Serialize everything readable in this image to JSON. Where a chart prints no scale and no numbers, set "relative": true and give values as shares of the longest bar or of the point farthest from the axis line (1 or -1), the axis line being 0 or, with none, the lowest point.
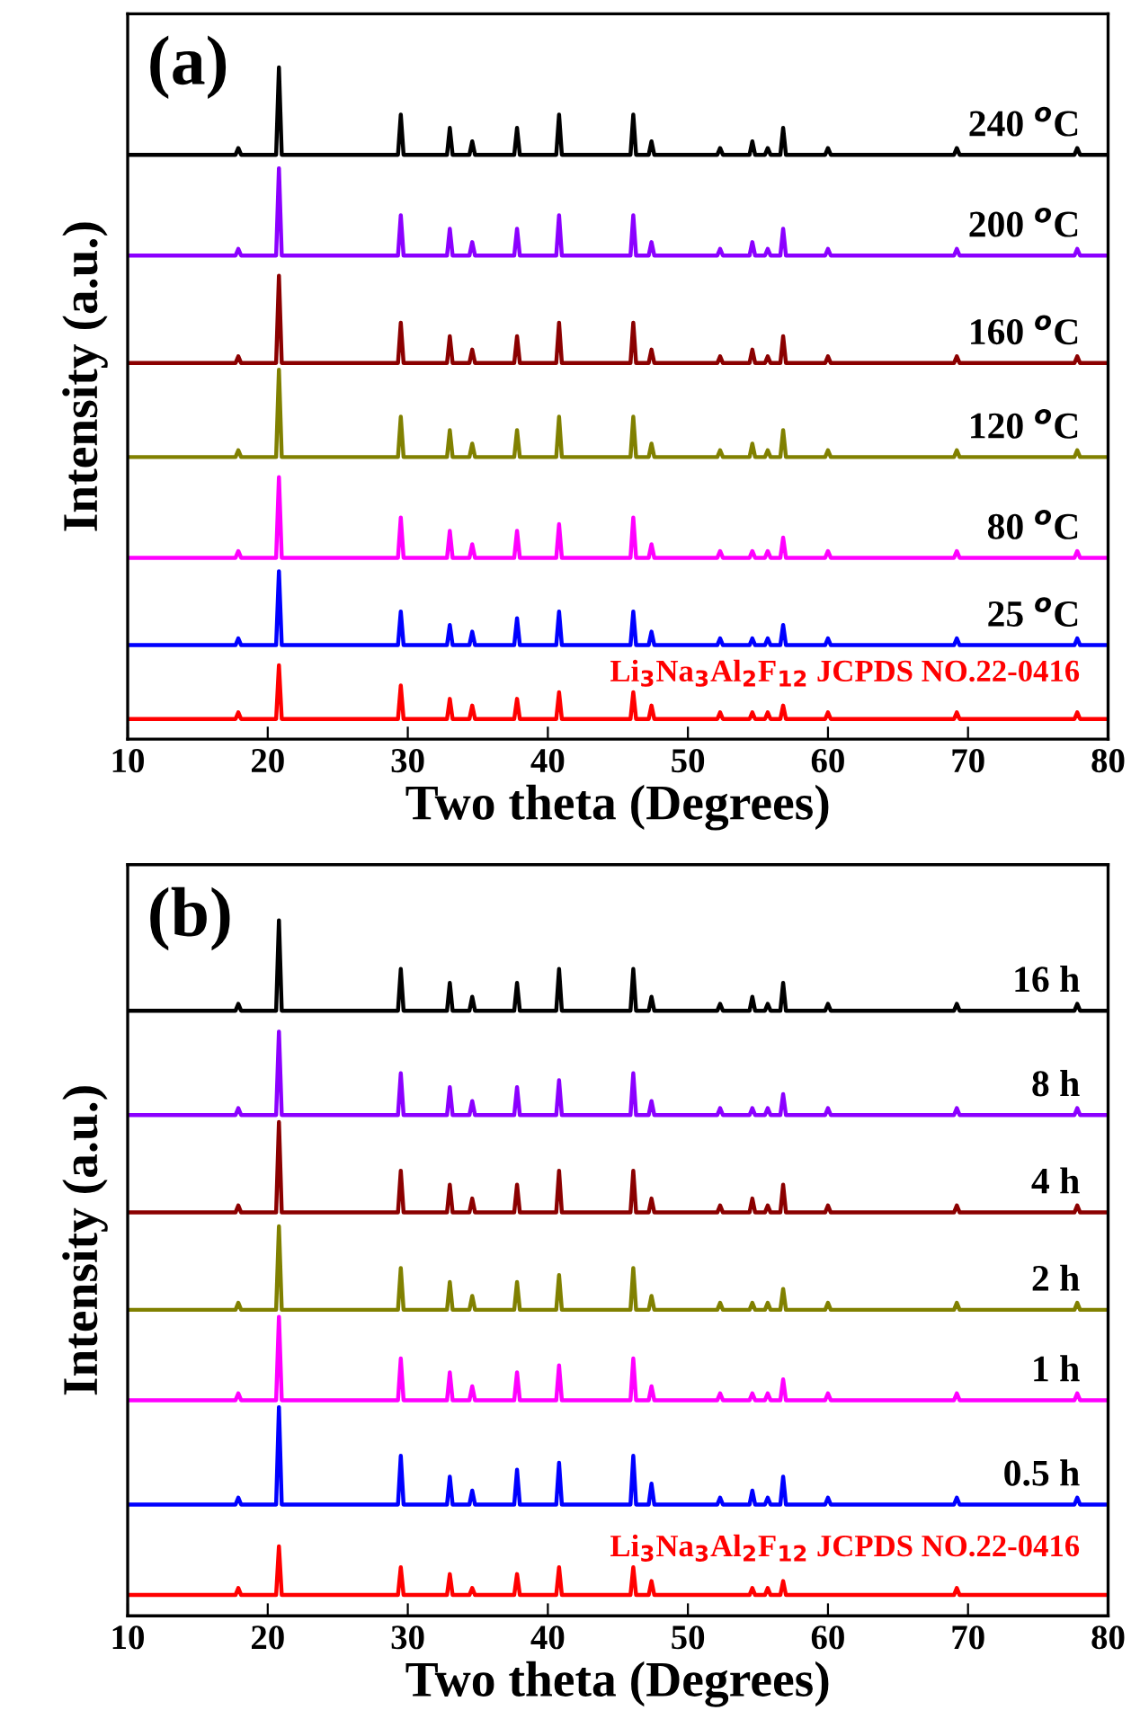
{
  "chart_data": [
    {
      "type": "line",
      "relative": true,
      "title": "(a)",
      "xlabel": "Two theta (Degrees)",
      "ylabel": "Intensity (a.u.)",
      "xlim": [
        10,
        80
      ],
      "xticks": [
        10,
        20,
        30,
        40,
        50,
        60,
        70,
        80
      ],
      "tick_labels": "x",
      "grid": false,
      "legend": false,
      "x": [
        10,
        17.7,
        17.9,
        18.1,
        20.6,
        20.8,
        21.0,
        29.3,
        29.5,
        29.7,
        32.8,
        33.0,
        33.2,
        34.4,
        34.6,
        34.8,
        37.6,
        37.8,
        38.0,
        40.6,
        40.8,
        41.0,
        45.9,
        46.1,
        46.3,
        47.2,
        47.4,
        47.6,
        52.1,
        52.3,
        52.5,
        54.4,
        54.6,
        54.8,
        55.5,
        55.7,
        55.9,
        56.6,
        56.8,
        57.0,
        59.8,
        60.0,
        60.2,
        69.0,
        69.2,
        69.4,
        77.6,
        77.8,
        78.0,
        80
      ],
      "series": [
        {
          "name": "240 $^{o}$C",
          "color": "#000000",
          "values": [
            0.87,
            0.87,
            0.88,
            0.87,
            0.87,
            1.0,
            0.87,
            0.87,
            0.93,
            0.87,
            0.87,
            0.91,
            0.87,
            0.87,
            0.89,
            0.87,
            0.87,
            0.91,
            0.87,
            0.87,
            0.93,
            0.87,
            0.87,
            0.93,
            0.87,
            0.87,
            0.89,
            0.87,
            0.87,
            0.88,
            0.87,
            0.87,
            0.89,
            0.87,
            0.87,
            0.88,
            0.87,
            0.87,
            0.91,
            0.87,
            0.87,
            0.88,
            0.87,
            0.87,
            0.88,
            0.87,
            0.87,
            0.88,
            0.87,
            0.87
          ]
        },
        {
          "name": "200 $^{o}$C",
          "color": "#8b00ff",
          "values": [
            0.72,
            0.72,
            0.73,
            0.72,
            0.72,
            0.85,
            0.72,
            0.72,
            0.78,
            0.72,
            0.72,
            0.76,
            0.72,
            0.72,
            0.74,
            0.72,
            0.72,
            0.76,
            0.72,
            0.72,
            0.78,
            0.72,
            0.72,
            0.78,
            0.72,
            0.72,
            0.74,
            0.72,
            0.72,
            0.73,
            0.72,
            0.72,
            0.74,
            0.72,
            0.72,
            0.73,
            0.72,
            0.72,
            0.76,
            0.72,
            0.72,
            0.73,
            0.72,
            0.72,
            0.73,
            0.72,
            0.72,
            0.73,
            0.72,
            0.72
          ]
        },
        {
          "name": "160 $^{o}$C",
          "color": "#8b0000",
          "values": [
            0.56,
            0.56,
            0.57,
            0.56,
            0.56,
            0.69,
            0.56,
            0.56,
            0.62,
            0.56,
            0.56,
            0.6,
            0.56,
            0.56,
            0.58,
            0.56,
            0.56,
            0.6,
            0.56,
            0.56,
            0.62,
            0.56,
            0.56,
            0.62,
            0.56,
            0.56,
            0.58,
            0.56,
            0.56,
            0.57,
            0.56,
            0.56,
            0.58,
            0.56,
            0.56,
            0.57,
            0.56,
            0.56,
            0.6,
            0.56,
            0.56,
            0.57,
            0.56,
            0.56,
            0.57,
            0.56,
            0.56,
            0.57,
            0.56,
            0.56
          ]
        },
        {
          "name": "120 $^{o}$C",
          "color": "#808000",
          "values": [
            0.42,
            0.42,
            0.43,
            0.42,
            0.42,
            0.55,
            0.42,
            0.42,
            0.48,
            0.42,
            0.42,
            0.46,
            0.42,
            0.42,
            0.44,
            0.42,
            0.42,
            0.46,
            0.42,
            0.42,
            0.48,
            0.42,
            0.42,
            0.48,
            0.42,
            0.42,
            0.44,
            0.42,
            0.42,
            0.43,
            0.42,
            0.42,
            0.44,
            0.42,
            0.42,
            0.43,
            0.42,
            0.42,
            0.46,
            0.42,
            0.42,
            0.43,
            0.42,
            0.42,
            0.43,
            0.42,
            0.42,
            0.43,
            0.42,
            0.42
          ]
        },
        {
          "name": "80 $^{o}$C",
          "color": "#ff00ff",
          "values": [
            0.27,
            0.27,
            0.28,
            0.27,
            0.27,
            0.39,
            0.27,
            0.27,
            0.33,
            0.27,
            0.27,
            0.31,
            0.27,
            0.27,
            0.29,
            0.27,
            0.27,
            0.31,
            0.27,
            0.27,
            0.32,
            0.27,
            0.27,
            0.33,
            0.27,
            0.27,
            0.29,
            0.27,
            0.27,
            0.28,
            0.27,
            0.27,
            0.28,
            0.27,
            0.27,
            0.28,
            0.27,
            0.27,
            0.3,
            0.27,
            0.27,
            0.28,
            0.27,
            0.27,
            0.28,
            0.27,
            0.27,
            0.28,
            0.27,
            0.27
          ]
        },
        {
          "name": "25 $^{o}$C",
          "color": "#0000ff",
          "values": [
            0.14,
            0.14,
            0.15,
            0.14,
            0.14,
            0.25,
            0.14,
            0.14,
            0.19,
            0.14,
            0.14,
            0.17,
            0.14,
            0.14,
            0.16,
            0.14,
            0.14,
            0.18,
            0.14,
            0.14,
            0.19,
            0.14,
            0.14,
            0.19,
            0.14,
            0.14,
            0.16,
            0.14,
            0.14,
            0.15,
            0.14,
            0.14,
            0.15,
            0.14,
            0.14,
            0.15,
            0.14,
            0.14,
            0.17,
            0.14,
            0.14,
            0.15,
            0.14,
            0.14,
            0.15,
            0.14,
            0.14,
            0.15,
            0.14,
            0.14
          ]
        },
        {
          "name": "Li$_{3}$Na$_{3}$Al$_{2}$F$_{12}$ JCPDS NO.22-0416",
          "color": "#ff0000",
          "values": [
            0.03,
            0.03,
            0.04,
            0.03,
            0.03,
            0.11,
            0.03,
            0.03,
            0.08,
            0.03,
            0.03,
            0.06,
            0.03,
            0.03,
            0.05,
            0.03,
            0.03,
            0.06,
            0.03,
            0.03,
            0.07,
            0.03,
            0.03,
            0.07,
            0.03,
            0.03,
            0.05,
            0.03,
            0.03,
            0.04,
            0.03,
            0.03,
            0.04,
            0.03,
            0.03,
            0.04,
            0.03,
            0.03,
            0.05,
            0.03,
            0.03,
            0.04,
            0.03,
            0.03,
            0.04,
            0.03,
            0.03,
            0.04,
            0.03,
            0.03
          ]
        }
      ]
    },
    {
      "type": "line",
      "relative": true,
      "title": "(b)",
      "xlabel": "Two theta (Degrees)",
      "ylabel": "Intensity (a.u.)",
      "xlim": [
        10,
        80
      ],
      "xticks": [
        10,
        20,
        30,
        40,
        50,
        60,
        70,
        80
      ],
      "tick_labels": "x",
      "grid": false,
      "legend": false,
      "x": [
        10,
        17.7,
        17.9,
        18.1,
        20.6,
        20.8,
        21.0,
        29.3,
        29.5,
        29.7,
        32.8,
        33.0,
        33.2,
        34.4,
        34.6,
        34.8,
        37.6,
        37.8,
        38.0,
        40.6,
        40.8,
        41.0,
        45.9,
        46.1,
        46.3,
        47.2,
        47.4,
        47.6,
        52.1,
        52.3,
        52.5,
        54.4,
        54.6,
        54.8,
        55.5,
        55.7,
        55.9,
        56.6,
        56.8,
        57.0,
        59.8,
        60.0,
        60.2,
        69.0,
        69.2,
        69.4,
        77.6,
        77.8,
        78.0,
        80
      ],
      "series": [
        {
          "name": "16 h",
          "color": "#000000",
          "values": [
            0.87,
            0.87,
            0.88,
            0.87,
            0.87,
            1.0,
            0.87,
            0.87,
            0.93,
            0.87,
            0.87,
            0.91,
            0.87,
            0.87,
            0.89,
            0.87,
            0.87,
            0.91,
            0.87,
            0.87,
            0.93,
            0.87,
            0.87,
            0.93,
            0.87,
            0.87,
            0.89,
            0.87,
            0.87,
            0.88,
            0.87,
            0.87,
            0.89,
            0.87,
            0.87,
            0.88,
            0.87,
            0.87,
            0.91,
            0.87,
            0.87,
            0.88,
            0.87,
            0.87,
            0.88,
            0.87,
            0.87,
            0.88,
            0.87,
            0.87
          ]
        },
        {
          "name": "8 h",
          "color": "#8b00ff",
          "values": [
            0.72,
            0.72,
            0.73,
            0.72,
            0.72,
            0.84,
            0.72,
            0.72,
            0.78,
            0.72,
            0.72,
            0.76,
            0.72,
            0.72,
            0.74,
            0.72,
            0.72,
            0.76,
            0.72,
            0.72,
            0.77,
            0.72,
            0.72,
            0.78,
            0.72,
            0.72,
            0.74,
            0.72,
            0.72,
            0.73,
            0.72,
            0.72,
            0.73,
            0.72,
            0.72,
            0.73,
            0.72,
            0.72,
            0.75,
            0.72,
            0.72,
            0.73,
            0.72,
            0.72,
            0.73,
            0.72,
            0.72,
            0.73,
            0.72,
            0.72
          ]
        },
        {
          "name": "4 h",
          "color": "#8b0000",
          "values": [
            0.58,
            0.58,
            0.59,
            0.58,
            0.58,
            0.71,
            0.58,
            0.58,
            0.64,
            0.58,
            0.58,
            0.62,
            0.58,
            0.58,
            0.6,
            0.58,
            0.58,
            0.62,
            0.58,
            0.58,
            0.64,
            0.58,
            0.58,
            0.64,
            0.58,
            0.58,
            0.6,
            0.58,
            0.58,
            0.59,
            0.58,
            0.58,
            0.6,
            0.58,
            0.58,
            0.59,
            0.58,
            0.58,
            0.62,
            0.58,
            0.58,
            0.59,
            0.58,
            0.58,
            0.59,
            0.58,
            0.58,
            0.59,
            0.58,
            0.58
          ]
        },
        {
          "name": "2 h",
          "color": "#808000",
          "values": [
            0.44,
            0.44,
            0.45,
            0.44,
            0.44,
            0.56,
            0.44,
            0.44,
            0.5,
            0.44,
            0.44,
            0.48,
            0.44,
            0.44,
            0.46,
            0.44,
            0.44,
            0.48,
            0.44,
            0.44,
            0.49,
            0.44,
            0.44,
            0.5,
            0.44,
            0.44,
            0.46,
            0.44,
            0.44,
            0.45,
            0.44,
            0.44,
            0.45,
            0.44,
            0.44,
            0.45,
            0.44,
            0.44,
            0.47,
            0.44,
            0.44,
            0.45,
            0.44,
            0.44,
            0.45,
            0.44,
            0.44,
            0.45,
            0.44,
            0.44
          ]
        },
        {
          "name": "1 h",
          "color": "#ff00ff",
          "values": [
            0.31,
            0.31,
            0.32,
            0.31,
            0.31,
            0.43,
            0.31,
            0.31,
            0.37,
            0.31,
            0.31,
            0.35,
            0.31,
            0.31,
            0.33,
            0.31,
            0.31,
            0.35,
            0.31,
            0.31,
            0.36,
            0.31,
            0.31,
            0.37,
            0.31,
            0.31,
            0.33,
            0.31,
            0.31,
            0.32,
            0.31,
            0.31,
            0.32,
            0.31,
            0.31,
            0.32,
            0.31,
            0.31,
            0.34,
            0.31,
            0.31,
            0.32,
            0.31,
            0.31,
            0.32,
            0.31,
            0.31,
            0.32,
            0.31,
            0.31
          ]
        },
        {
          "name": "0.5 h",
          "color": "#0000ff",
          "values": [
            0.16,
            0.16,
            0.17,
            0.16,
            0.16,
            0.3,
            0.16,
            0.16,
            0.23,
            0.16,
            0.16,
            0.2,
            0.16,
            0.16,
            0.18,
            0.16,
            0.16,
            0.21,
            0.16,
            0.16,
            0.22,
            0.16,
            0.16,
            0.23,
            0.16,
            0.16,
            0.19,
            0.16,
            0.16,
            0.17,
            0.16,
            0.16,
            0.18,
            0.16,
            0.16,
            0.17,
            0.16,
            0.16,
            0.2,
            0.16,
            0.16,
            0.17,
            0.16,
            0.16,
            0.17,
            0.16,
            0.16,
            0.17,
            0.16,
            0.16
          ]
        },
        {
          "name": "Li$_{3}$Na$_{3}$Al$_{2}$F$_{12}$ JCPDS NO.22-0416",
          "color": "#ff0000",
          "values": [
            0.03,
            0.03,
            0.04,
            0.03,
            0.03,
            0.1,
            0.03,
            0.03,
            0.07,
            0.03,
            0.03,
            0.06,
            0.03,
            0.03,
            0.04,
            0.03,
            0.03,
            0.06,
            0.03,
            0.03,
            0.07,
            0.03,
            0.03,
            0.07,
            0.03,
            0.03,
            0.05,
            0.03,
            0.03,
            0.03,
            0.03,
            0.03,
            0.04,
            0.03,
            0.03,
            0.04,
            0.03,
            0.03,
            0.05,
            0.03,
            0.03,
            0.03,
            0.03,
            0.03,
            0.04,
            0.03,
            0.03,
            0.03,
            0.03,
            0.03
          ]
        }
      ]
    }
  ]
}
